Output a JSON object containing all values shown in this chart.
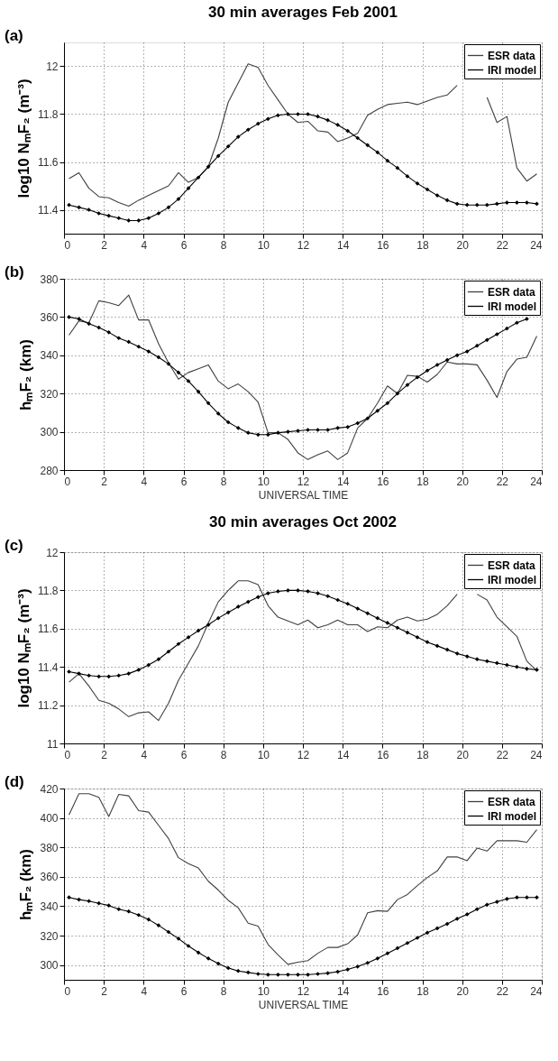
{
  "chart_data": [
    {
      "type": "line",
      "title": "30 min averages  Feb 2001",
      "ylabel": "log10 NₘF₂ (m⁻³)",
      "annotations": [
        "(a)"
      ],
      "x": [
        0.25,
        0.75,
        1.25,
        1.75,
        2.25,
        2.75,
        3.25,
        3.75,
        4.25,
        4.75,
        5.25,
        5.75,
        6.25,
        6.75,
        7.25,
        7.75,
        8.25,
        8.75,
        9.25,
        9.75,
        10.25,
        10.75,
        11.25,
        11.75,
        12.25,
        12.75,
        13.25,
        13.75,
        14.25,
        14.75,
        15.25,
        15.75,
        16.25,
        16.75,
        17.25,
        17.75,
        18.25,
        18.75,
        19.25,
        19.75,
        20.25,
        20.75,
        21.25,
        21.75,
        22.25,
        22.75,
        23.25,
        23.75
      ],
      "series": [
        {
          "name": "ESR data",
          "color": "#404040",
          "marker": "none",
          "values": [
            11.53,
            11.555,
            11.49,
            11.455,
            11.45,
            11.43,
            11.415,
            11.44,
            11.46,
            11.48,
            11.5,
            11.555,
            11.515,
            11.535,
            11.58,
            11.7,
            11.85,
            11.93,
            12.01,
            11.995,
            11.92,
            11.86,
            11.8,
            11.765,
            11.77,
            11.73,
            11.725,
            11.685,
            11.7,
            11.72,
            11.795,
            11.82,
            11.84,
            11.845,
            11.85,
            11.84,
            11.855,
            11.87,
            11.88,
            11.92,
            null,
            null,
            11.87,
            11.765,
            11.79,
            11.575,
            11.52,
            11.55
          ]
        },
        {
          "name": "IRI model",
          "color": "#000000",
          "marker": "diamond",
          "values": [
            11.42,
            11.41,
            11.4,
            11.385,
            11.375,
            11.365,
            11.355,
            11.355,
            11.365,
            11.385,
            11.41,
            11.445,
            11.49,
            11.535,
            11.58,
            11.625,
            11.665,
            11.705,
            11.735,
            11.76,
            11.78,
            11.795,
            11.8,
            11.8,
            11.8,
            11.79,
            11.775,
            11.755,
            11.73,
            11.7,
            11.67,
            11.64,
            11.605,
            11.575,
            11.54,
            11.51,
            11.485,
            11.46,
            11.44,
            11.425,
            11.42,
            11.42,
            11.42,
            11.425,
            11.43,
            11.43,
            11.43,
            11.425
          ]
        }
      ],
      "xlim": [
        0,
        24
      ],
      "xticks": [
        0,
        2,
        4,
        6,
        8,
        10,
        12,
        14,
        16,
        18,
        20,
        22,
        24
      ],
      "ylim": [
        11.3,
        12.1
      ],
      "yticks": [
        11.4,
        11.6,
        11.8,
        12
      ],
      "grid": true,
      "legend": "top right"
    },
    {
      "type": "line",
      "xlabel": "UNIVERSAL TIME",
      "ylabel": "hₘF₂ (km)",
      "annotations": [
        "(b)"
      ],
      "x": [
        0.25,
        0.75,
        1.25,
        1.75,
        2.25,
        2.75,
        3.25,
        3.75,
        4.25,
        4.75,
        5.25,
        5.75,
        6.25,
        6.75,
        7.25,
        7.75,
        8.25,
        8.75,
        9.25,
        9.75,
        10.25,
        10.75,
        11.25,
        11.75,
        12.25,
        12.75,
        13.25,
        13.75,
        14.25,
        14.75,
        15.25,
        15.75,
        16.25,
        16.75,
        17.25,
        17.75,
        18.25,
        18.75,
        19.25,
        19.75,
        20.25,
        20.75,
        21.25,
        21.75,
        22.25,
        22.75,
        23.25,
        23.75
      ],
      "series": [
        {
          "name": "ESR data",
          "color": "#404040",
          "marker": "none",
          "values": [
            350.5,
            358,
            357,
            368.5,
            367.5,
            366,
            371.5,
            358.5,
            358.5,
            346,
            336,
            327.5,
            331,
            333,
            335,
            326.5,
            322.5,
            325,
            321,
            315.5,
            299.5,
            299.5,
            296,
            289,
            285.5,
            288,
            290,
            285.5,
            289,
            302,
            307,
            315,
            324,
            320,
            329.5,
            329,
            326,
            330,
            336.5,
            335.5,
            335.5,
            335,
            327,
            318,
            331.5,
            338,
            339,
            350
          ]
        },
        {
          "name": "IRI model",
          "color": "#000000",
          "marker": "diamond",
          "values": [
            360,
            359,
            356.5,
            354.5,
            352,
            349,
            347,
            344.5,
            342,
            339,
            335.5,
            331,
            326.5,
            321,
            315,
            309.5,
            305,
            302,
            299.5,
            298.5,
            298.5,
            299.5,
            300,
            300.5,
            301,
            301,
            301,
            302,
            302.5,
            304.5,
            307,
            311,
            315,
            320,
            324.5,
            328.5,
            332,
            335,
            337.5,
            340,
            342,
            345,
            348,
            351,
            354,
            357,
            359,
            null
          ]
        }
      ],
      "xlim": [
        0,
        24
      ],
      "xticks": [
        0,
        2,
        4,
        6,
        8,
        10,
        12,
        14,
        16,
        18,
        20,
        22,
        24
      ],
      "ylim": [
        280,
        380
      ],
      "yticks": [
        280,
        300,
        320,
        340,
        360,
        380
      ],
      "grid": true,
      "legend": "top right"
    },
    {
      "type": "line",
      "title": "30 min averages  Oct 2002",
      "ylabel": "log10 NₘF₂ (m⁻³)",
      "annotations": [
        "(c)"
      ],
      "x": [
        0.25,
        0.75,
        1.25,
        1.75,
        2.25,
        2.75,
        3.25,
        3.75,
        4.25,
        4.75,
        5.25,
        5.75,
        6.25,
        6.75,
        7.25,
        7.75,
        8.25,
        8.75,
        9.25,
        9.75,
        10.25,
        10.75,
        11.25,
        11.75,
        12.25,
        12.75,
        13.25,
        13.75,
        14.25,
        14.75,
        15.25,
        15.75,
        16.25,
        16.75,
        17.25,
        17.75,
        18.25,
        18.75,
        19.25,
        19.75,
        20.25,
        20.75,
        21.25,
        21.75,
        22.25,
        22.75,
        23.25,
        23.75
      ],
      "series": [
        {
          "name": "ESR data",
          "color": "#404040",
          "marker": "none",
          "values": [
            11.32,
            11.365,
            11.3,
            11.225,
            11.21,
            11.18,
            11.14,
            11.16,
            11.165,
            11.12,
            11.21,
            11.33,
            11.42,
            11.51,
            11.63,
            11.74,
            11.8,
            11.85,
            11.85,
            11.83,
            11.72,
            11.66,
            11.64,
            11.62,
            11.645,
            11.605,
            11.62,
            11.645,
            11.62,
            11.62,
            11.585,
            11.61,
            11.605,
            11.645,
            11.66,
            11.64,
            11.65,
            11.675,
            11.72,
            11.78,
            null,
            11.78,
            11.75,
            11.66,
            11.61,
            11.56,
            11.43,
            11.38
          ]
        },
        {
          "name": "IRI model",
          "color": "#000000",
          "marker": "diamond",
          "values": [
            11.375,
            11.365,
            11.355,
            11.35,
            11.35,
            11.355,
            11.365,
            11.385,
            11.41,
            11.44,
            11.48,
            11.52,
            11.555,
            11.59,
            11.62,
            11.655,
            11.685,
            11.715,
            11.74,
            11.765,
            11.785,
            11.795,
            11.8,
            11.8,
            11.795,
            11.785,
            11.77,
            11.75,
            11.73,
            11.705,
            11.68,
            11.655,
            11.63,
            11.605,
            11.58,
            11.555,
            11.53,
            11.51,
            11.49,
            11.47,
            11.455,
            11.44,
            11.43,
            11.42,
            11.41,
            11.4,
            11.39,
            11.385
          ]
        }
      ],
      "xlim": [
        0,
        24
      ],
      "xticks": [
        0,
        2,
        4,
        6,
        8,
        10,
        12,
        14,
        16,
        18,
        20,
        22,
        24
      ],
      "ylim": [
        11,
        12
      ],
      "yticks": [
        11,
        11.2,
        11.4,
        11.6,
        11.8,
        12
      ],
      "grid": true,
      "legend": "top right"
    },
    {
      "type": "line",
      "xlabel": "UNIVERSAL TIME",
      "ylabel": "hₘF₂ (km)",
      "annotations": [
        "(d)"
      ],
      "x": [
        0.25,
        0.75,
        1.25,
        1.75,
        2.25,
        2.75,
        3.25,
        3.75,
        4.25,
        4.75,
        5.25,
        5.75,
        6.25,
        6.75,
        7.25,
        7.75,
        8.25,
        8.75,
        9.25,
        9.75,
        10.25,
        10.75,
        11.25,
        11.75,
        12.25,
        12.75,
        13.25,
        13.75,
        14.25,
        14.75,
        15.25,
        15.75,
        16.25,
        16.75,
        17.25,
        17.75,
        18.25,
        18.75,
        19.25,
        19.75,
        20.25,
        20.75,
        21.25,
        21.75,
        22.25,
        22.75,
        23.25,
        23.75
      ],
      "series": [
        {
          "name": "ESR data",
          "color": "#404040",
          "marker": "none",
          "values": [
            402,
            416.5,
            416.5,
            414,
            401,
            416,
            415,
            405,
            404,
            395,
            386,
            373,
            369,
            366,
            357,
            351,
            344,
            339,
            328.5,
            326.5,
            314,
            307,
            300.5,
            302,
            303,
            308,
            312,
            312,
            314.5,
            320.5,
            335.5,
            337,
            336.5,
            344.5,
            348,
            354,
            359.5,
            364,
            373.5,
            373.5,
            371,
            379.5,
            377.5,
            384.5,
            384.5,
            384.5,
            383.5,
            392
          ]
        },
        {
          "name": "IRI model",
          "color": "#000000",
          "marker": "diamond",
          "values": [
            346,
            344.5,
            343.5,
            342,
            340.5,
            338,
            336.5,
            334,
            331,
            327,
            322.5,
            318,
            313,
            308.5,
            304.5,
            301,
            298,
            296,
            295,
            294,
            293.5,
            293.5,
            293.5,
            293.5,
            293.5,
            294,
            294.5,
            295.5,
            297,
            299,
            301.5,
            304.5,
            308,
            311.5,
            315,
            318.5,
            322,
            325,
            328,
            331.5,
            334.5,
            338,
            341,
            343,
            345,
            346,
            346,
            346
          ]
        }
      ],
      "xlim": [
        0,
        24
      ],
      "xticks": [
        0,
        2,
        4,
        6,
        8,
        10,
        12,
        14,
        16,
        18,
        20,
        22,
        24
      ],
      "ylim": [
        290,
        420
      ],
      "yticks": [
        300,
        320,
        340,
        360,
        380,
        400,
        420
      ],
      "grid": true,
      "legend": "top right"
    }
  ]
}
